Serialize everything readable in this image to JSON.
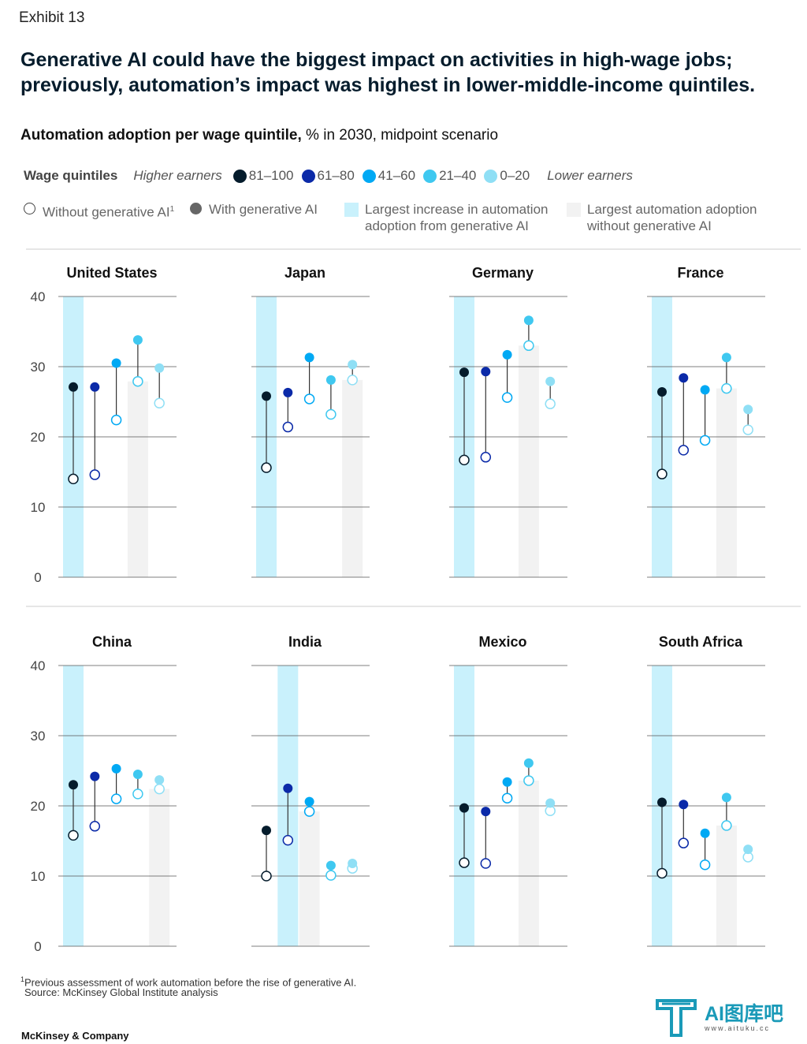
{
  "exhibit": "Exhibit 13",
  "headline": "Generative AI could have the biggest impact on activities in high-wage jobs; previously, automation’s impact was highest in lower-middle-income quintiles.",
  "subtitle": {
    "bold": "Automation adoption per wage quintile,",
    "rest": " % in 2030, midpoint scenario"
  },
  "legend": {
    "wage_label": "Wage quintiles",
    "higher": "Higher earners",
    "lower": "Lower earners",
    "quintiles": [
      {
        "label": "81–100",
        "color": "#051c2c"
      },
      {
        "label": "61–80",
        "color": "#0b2aa8"
      },
      {
        "label": "41–60",
        "color": "#00a9f4"
      },
      {
        "label": "21–40",
        "color": "#3fc8f0"
      },
      {
        "label": "0–20",
        "color": "#8fdff5"
      }
    ],
    "without": "Without generative AI",
    "without_sup": "1",
    "with": "With generative AI",
    "largest_increase": [
      "Largest increase in automation",
      "adoption from generative AI"
    ],
    "largest_adoption": [
      "Largest automation adoption",
      "without generative AI"
    ],
    "increase_color": "#c9f1fc",
    "adoption_color": "#f2f2f2"
  },
  "chart_data": {
    "type": "dot-range",
    "ylim": [
      0,
      40
    ],
    "yticks": [
      "0",
      "10",
      "20",
      "30",
      "40"
    ],
    "series": [
      "81–100",
      "61–80",
      "41–60",
      "21–40",
      "0–20"
    ],
    "panels": [
      {
        "country": "United States",
        "without": [
          14.0,
          14.6,
          22.4,
          27.9,
          24.8
        ],
        "with": [
          27.1,
          27.1,
          30.5,
          33.8,
          29.8
        ],
        "largest_increase": 0,
        "largest_adoption": 3
      },
      {
        "country": "Japan",
        "without": [
          15.6,
          21.4,
          25.4,
          23.2,
          28.1
        ],
        "with": [
          25.8,
          26.3,
          31.3,
          28.1,
          30.3
        ],
        "largest_increase": 0,
        "largest_adoption": 4
      },
      {
        "country": "Germany",
        "without": [
          16.7,
          17.1,
          25.6,
          33.0,
          24.7
        ],
        "with": [
          29.2,
          29.3,
          31.7,
          36.6,
          27.9
        ],
        "largest_increase": 0,
        "largest_adoption": 3
      },
      {
        "country": "France",
        "without": [
          14.7,
          18.1,
          19.5,
          26.9,
          21.0
        ],
        "with": [
          26.4,
          28.4,
          26.7,
          31.3,
          23.9
        ],
        "largest_increase": 0,
        "largest_adoption": 3
      },
      {
        "country": "China",
        "without": [
          15.8,
          17.1,
          21.0,
          21.7,
          22.4
        ],
        "with": [
          23.0,
          24.2,
          25.3,
          24.5,
          23.7
        ],
        "largest_increase": 0,
        "largest_adoption": 4
      },
      {
        "country": "India",
        "without": [
          10.0,
          15.1,
          19.2,
          10.1,
          11.1
        ],
        "with": [
          16.5,
          22.5,
          20.6,
          11.5,
          11.8
        ],
        "largest_increase": 1,
        "largest_adoption": 2
      },
      {
        "country": "Mexico",
        "without": [
          11.9,
          11.8,
          21.1,
          23.6,
          19.3
        ],
        "with": [
          19.7,
          19.2,
          23.4,
          26.1,
          20.4
        ],
        "largest_increase": 0,
        "largest_adoption": 3
      },
      {
        "country": "South Africa",
        "without": [
          10.4,
          14.7,
          11.6,
          17.2,
          12.7
        ],
        "with": [
          20.5,
          20.2,
          16.1,
          21.2,
          13.8
        ],
        "largest_increase": 0,
        "largest_adoption": 3
      }
    ]
  },
  "footnote": "Previous assessment of work automation before the rise of generative AI.",
  "footnote_mark": "1",
  "source": "Source: McKinsey Global Institute analysis",
  "brand": "McKinsey & Company",
  "watermark": {
    "main": "AI图库吧",
    "sub": "www.aituku.cc"
  }
}
